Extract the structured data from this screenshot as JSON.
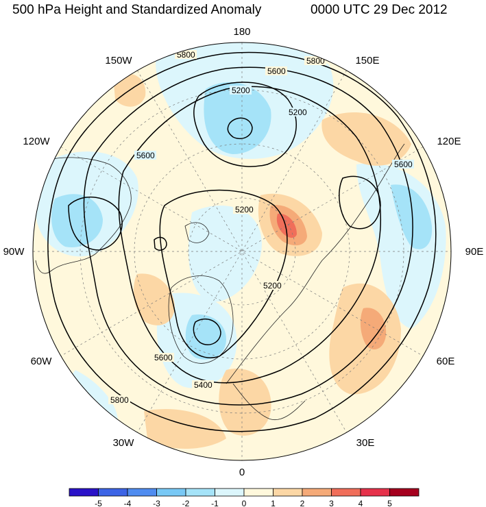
{
  "header": {
    "title": "500 hPa Height and Standardized Anomaly",
    "datetime": "0000 UTC 29 Dec 2012"
  },
  "map": {
    "projection": "polar-stereographic-north",
    "longitude_labels": [
      "180",
      "150E",
      "120E",
      "90E",
      "60E",
      "30E",
      "0",
      "30W",
      "60W",
      "90W",
      "120W",
      "150W"
    ],
    "contour_labels": [
      "5800",
      "5800",
      "5600",
      "5200",
      "5200",
      "5600",
      "5600",
      "5200",
      "5200",
      "5600",
      "5400",
      "5800"
    ],
    "colors": {
      "contour": "#000000",
      "coast": "#222222",
      "grid": "#7a7a7a"
    }
  },
  "colorbar": {
    "colors": [
      "#2a12c8",
      "#3c64e6",
      "#4f8cf0",
      "#78c8f5",
      "#a5e3f8",
      "#dcf6fc",
      "#fff8dc",
      "#fcd7a5",
      "#f5aa78",
      "#f06e5a",
      "#e6324b",
      "#a5001e"
    ],
    "tick_labels": [
      "-5",
      "-4",
      "-3",
      "-2",
      "-1",
      "0",
      "1",
      "2",
      "3",
      "4",
      "5"
    ]
  }
}
